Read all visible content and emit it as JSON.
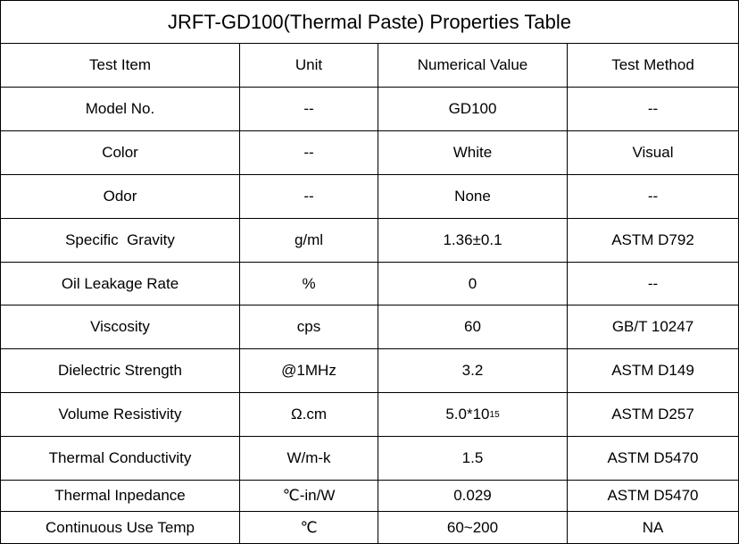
{
  "table": {
    "title": "JRFT-GD100(Thermal Paste) Properties Table",
    "header": [
      "Test Item",
      "Unit",
      "Numerical Value",
      "Test Method"
    ],
    "rows": [
      [
        "Model No.",
        "--",
        "GD100",
        "--"
      ],
      [
        "Color",
        "--",
        "White",
        "Visual"
      ],
      [
        "Odor",
        "--",
        "None",
        "--"
      ],
      [
        "Specific  Gravity",
        "g/ml",
        "1.36±0.1",
        "ASTM D792"
      ],
      [
        "Oil Leakage Rate",
        "%",
        "0",
        "--"
      ],
      [
        "Viscosity",
        "cps",
        "60",
        "GB/T 10247"
      ],
      [
        "Dielectric Strength",
        "@1MHz",
        "3.2",
        "ASTM D149"
      ],
      [
        "Volume Resistivity",
        "Ω.cm",
        {
          "base": "5.0*10",
          "sup": "15"
        },
        "ASTM D257"
      ],
      [
        "Thermal Conductivity",
        "W/m-k",
        "1.5",
        "ASTM D5470"
      ],
      [
        "Thermal Inpedance",
        "℃-in/W",
        "0.029",
        "ASTM D5470"
      ],
      [
        "Continuous Use Temp",
        "℃",
        "60~200",
        "NA"
      ]
    ]
  }
}
